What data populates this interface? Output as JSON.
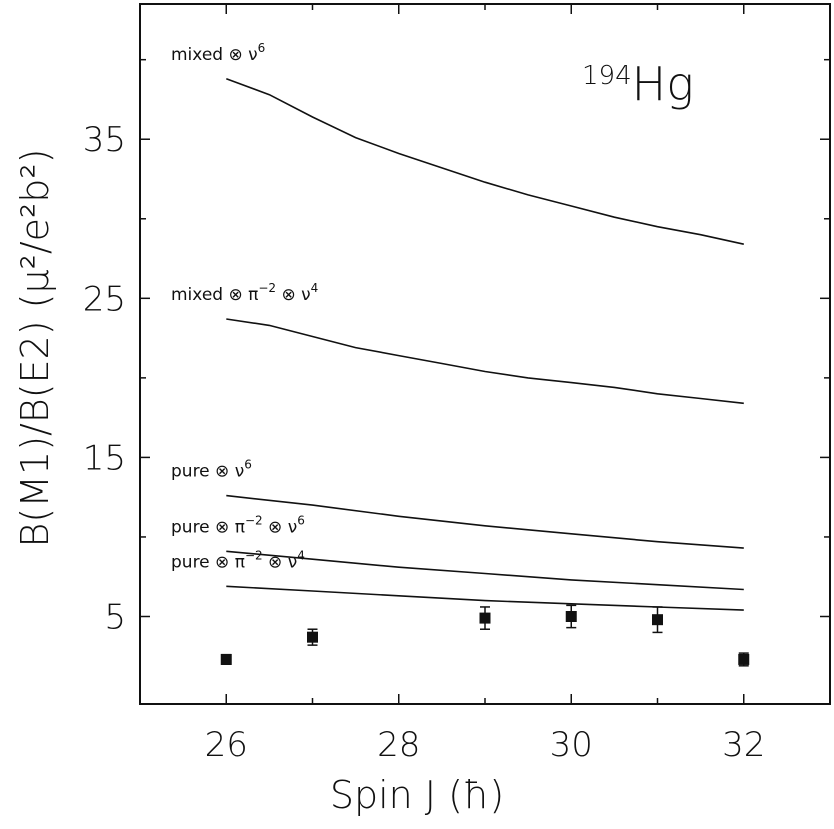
{
  "chart_data": {
    "type": "line",
    "title": "",
    "annotation": {
      "mass_number": "194",
      "element": "Hg"
    },
    "xlabel": "Spin J (ħ)",
    "ylabel": "B(M1)/B(E2)  (μ²/e²b²)",
    "xlim": [
      25,
      33
    ],
    "ylim": [
      -0.5,
      43.5
    ],
    "x_ticks": [
      26,
      28,
      30,
      32
    ],
    "y_ticks": [
      5,
      15,
      25,
      35
    ],
    "series": [
      {
        "name": "mixed ⊗ ν⁶",
        "label_parts": [
          "mixed ⊗ ν",
          "6"
        ],
        "x": [
          26,
          26.5,
          27,
          27.5,
          28,
          28.5,
          29,
          29.5,
          30,
          30.5,
          31,
          31.5,
          32
        ],
        "y": [
          38.8,
          37.8,
          36.4,
          35.1,
          34.1,
          33.2,
          32.3,
          31.5,
          30.8,
          30.1,
          29.5,
          29.0,
          28.4
        ]
      },
      {
        "name": "mixed ⊗ π⁻² ⊗ ν⁴",
        "label_parts": [
          "mixed ⊗ π",
          "−2",
          " ⊗ ν",
          "4"
        ],
        "x": [
          26,
          26.5,
          27,
          27.5,
          28,
          28.5,
          29,
          29.5,
          30,
          30.5,
          31,
          31.5,
          32
        ],
        "y": [
          23.7,
          23.3,
          22.6,
          21.9,
          21.4,
          20.9,
          20.4,
          20.0,
          19.7,
          19.4,
          19.0,
          18.7,
          18.4
        ]
      },
      {
        "name": "pure ⊗ ν⁶",
        "label_parts": [
          "pure ⊗ ν",
          "6"
        ],
        "x": [
          26,
          27,
          28,
          29,
          30,
          31,
          32
        ],
        "y": [
          12.6,
          12.0,
          11.3,
          10.7,
          10.2,
          9.7,
          9.3
        ]
      },
      {
        "name": "pure ⊗ π⁻² ⊗ ν⁶",
        "label_parts": [
          "pure ⊗ π",
          "−2",
          " ⊗ ν",
          "6"
        ],
        "x": [
          26,
          27,
          28,
          29,
          30,
          31,
          32
        ],
        "y": [
          9.1,
          8.6,
          8.1,
          7.7,
          7.3,
          7.0,
          6.7
        ]
      },
      {
        "name": "pure ⊗ π⁻² ⊗ ν⁴",
        "label_parts": [
          "pure ⊗ π",
          "−2",
          " ⊗ ν",
          "4"
        ],
        "x": [
          26,
          27,
          28,
          29,
          30,
          31,
          32
        ],
        "y": [
          6.9,
          6.6,
          6.3,
          6.0,
          5.8,
          5.6,
          5.4
        ]
      }
    ],
    "experimental": {
      "marker": "filled-square",
      "x": [
        26,
        27,
        29,
        30,
        31,
        32
      ],
      "y": [
        2.3,
        3.7,
        4.9,
        5.0,
        4.8,
        2.3
      ],
      "err": [
        0.3,
        0.5,
        0.7,
        0.7,
        0.8,
        0.4
      ]
    },
    "grid": false,
    "legend": "inline labels at left of each curve"
  }
}
